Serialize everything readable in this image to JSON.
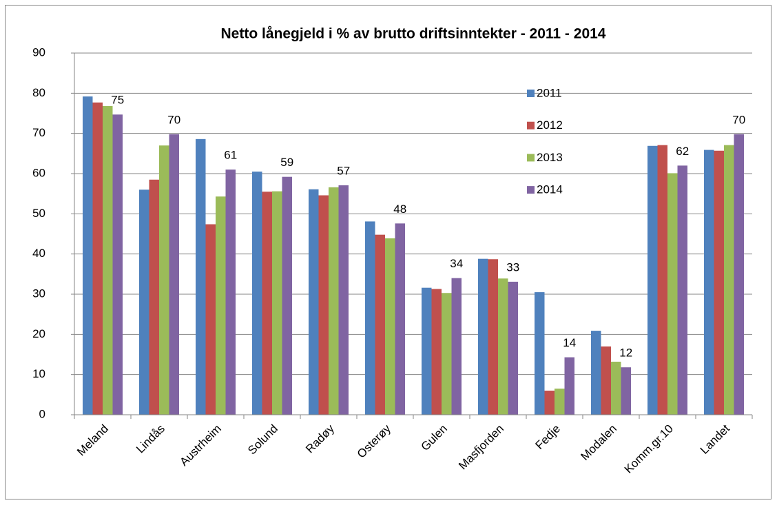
{
  "chart_data": {
    "type": "bar",
    "title": "Netto lånegjeld i % av brutto driftsinntekter  - 2011 - 2014",
    "categories": [
      "Meland",
      "Lindås",
      "Austrheim",
      "Solund",
      "Radøy",
      "Osterøy",
      "Gulen",
      "Masfjorden",
      "Fedje",
      "Modalen",
      "Komm.gr.10",
      "Landet"
    ],
    "series": [
      {
        "name": "2011",
        "color": "#4f81bd",
        "values": [
          79.2,
          56,
          68.6,
          60.5,
          56.1,
          48.1,
          31.6,
          38.8,
          30.5,
          20.9,
          66.9,
          65.9
        ]
      },
      {
        "name": "2012",
        "color": "#c0504d",
        "values": [
          77.7,
          58.5,
          47.4,
          55.5,
          54.6,
          44.8,
          31.3,
          38.7,
          6,
          17,
          67.1,
          65.7
        ]
      },
      {
        "name": "2013",
        "color": "#9bbb59",
        "values": [
          76.8,
          67,
          54.3,
          55.6,
          56.6,
          43.9,
          30.3,
          33.9,
          6.5,
          13.2,
          60.1,
          67.1
        ]
      },
      {
        "name": "2014",
        "color": "#8064a2",
        "values": [
          74.7,
          69.8,
          61,
          59.2,
          57.1,
          47.6,
          34,
          33.1,
          14.3,
          11.8,
          62,
          69.8
        ],
        "value_labels": [
          "75",
          "70",
          "61",
          "59",
          "57",
          "48",
          "34",
          "33",
          "14",
          "12",
          "62",
          "70"
        ]
      }
    ],
    "ylim": [
      0,
      90
    ],
    "yticks": [
      0,
      10,
      20,
      30,
      40,
      50,
      60,
      70,
      80,
      90
    ],
    "grid": true,
    "legend": "inside"
  }
}
